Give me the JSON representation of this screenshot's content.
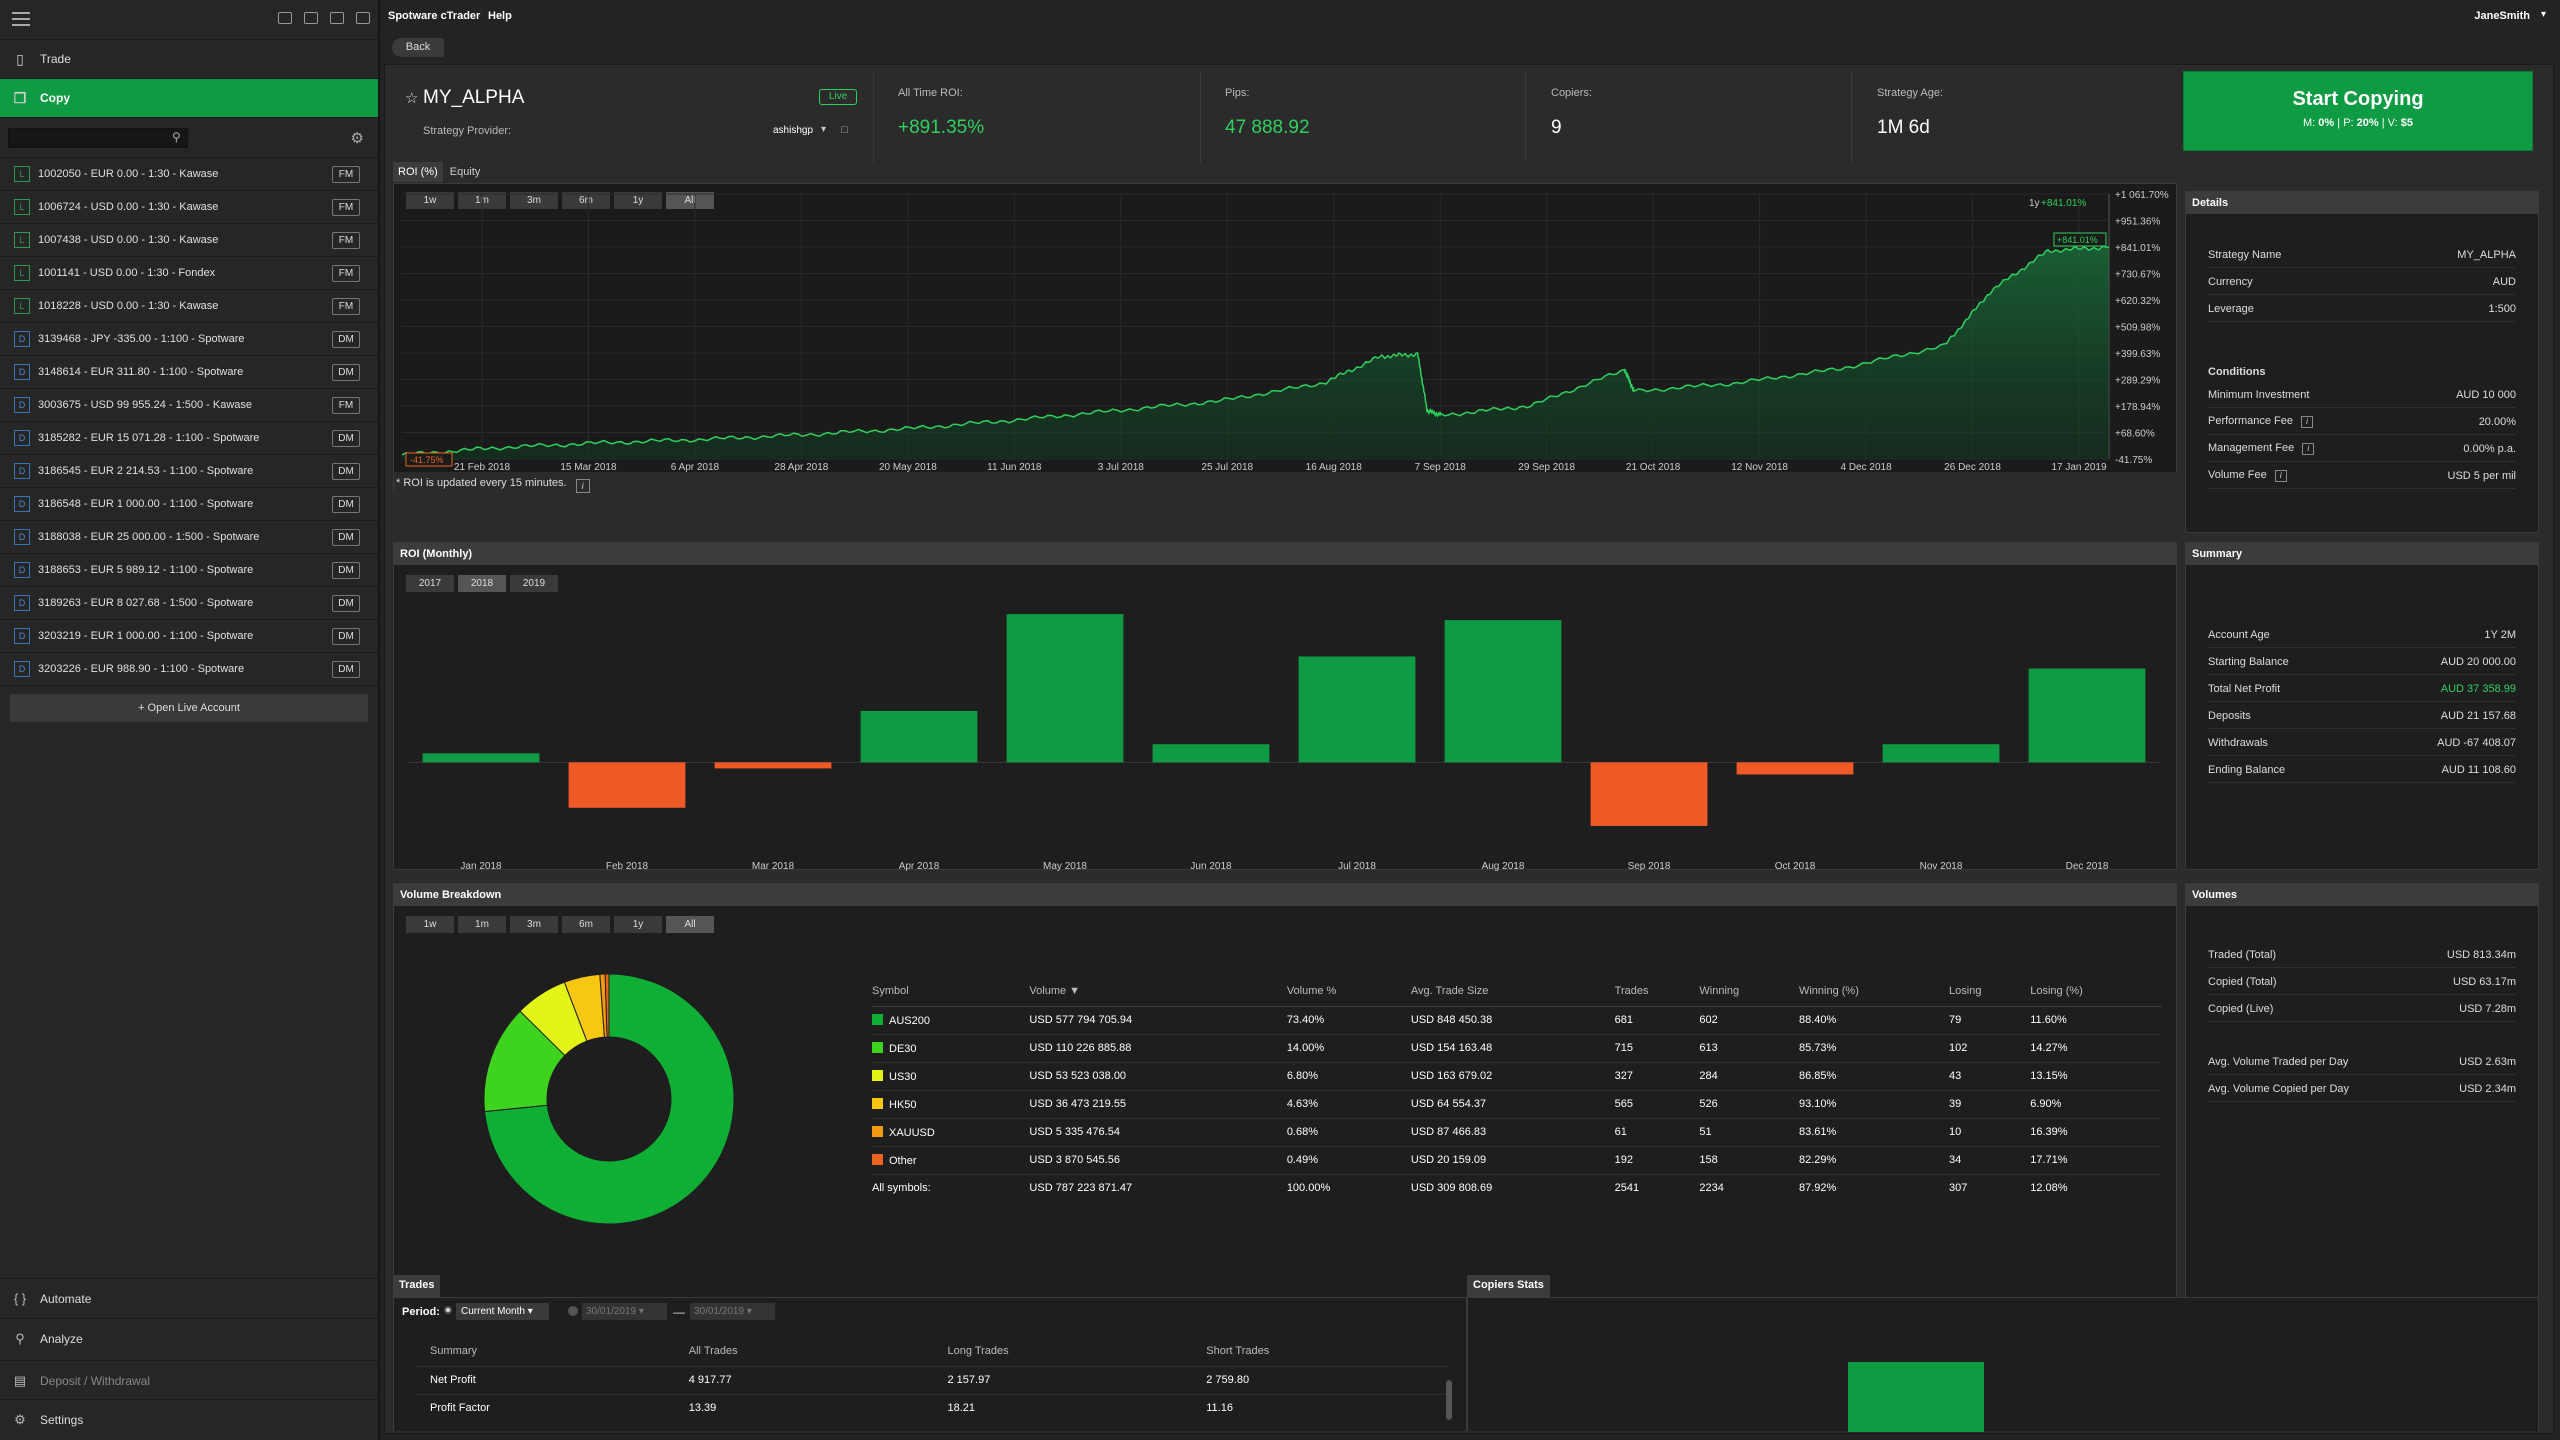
{
  "app": {
    "title": "Spotware cTrader",
    "help": "Help",
    "user": "JaneSmith",
    "back": "Back"
  },
  "sidebar": {
    "trade": "Trade",
    "copy": "Copy",
    "accounts": [
      {
        "type": "L",
        "label": "1002050 - EUR 0.00 - 1:30 - Kawase",
        "tag": "FM"
      },
      {
        "type": "L",
        "label": "1006724 - USD 0.00 - 1:30 - Kawase",
        "tag": "FM"
      },
      {
        "type": "L",
        "label": "1007438 - USD 0.00 - 1:30 - Kawase",
        "tag": "FM"
      },
      {
        "type": "L",
        "label": "1001141 - USD 0.00 - 1:30 - Fondex",
        "tag": "FM"
      },
      {
        "type": "L",
        "label": "1018228 - USD 0.00 - 1:30 - Kawase",
        "tag": "FM"
      },
      {
        "type": "D",
        "label": "3139468 - JPY -335.00 - 1:100 - Spotware",
        "tag": "DM"
      },
      {
        "type": "D",
        "label": "3148614 - EUR 311.80 - 1:100 - Spotware",
        "tag": "DM"
      },
      {
        "type": "D",
        "label": "3003675 - USD 99 955.24 - 1:500 - Kawase",
        "tag": "FM"
      },
      {
        "type": "D",
        "label": "3185282 - EUR 15 071.28 - 1:100 - Spotware",
        "tag": "DM"
      },
      {
        "type": "D",
        "label": "3186545 - EUR 2 214.53 - 1:100 - Spotware",
        "tag": "DM"
      },
      {
        "type": "D",
        "label": "3186548 - EUR 1 000.00 - 1:100 - Spotware",
        "tag": "DM"
      },
      {
        "type": "D",
        "label": "3188038 - EUR 25 000.00 - 1:500 - Spotware",
        "tag": "DM"
      },
      {
        "type": "D",
        "label": "3188653 - EUR 5 989.12 - 1:100 - Spotware",
        "tag": "DM"
      },
      {
        "type": "D",
        "label": "3189263 - EUR 8 027.68 - 1:500 - Spotware",
        "tag": "DM"
      },
      {
        "type": "D",
        "label": "3203219 - EUR 1 000.00 - 1:100 - Spotware",
        "tag": "DM"
      },
      {
        "type": "D",
        "label": "3203226 - EUR 988.90 - 1:100 - Spotware",
        "tag": "DM"
      }
    ],
    "open_live": "+ Open Live Account",
    "automate": "Automate",
    "analyze": "Analyze",
    "deposit": "Deposit / Withdrawal",
    "settings": "Settings"
  },
  "strategy": {
    "name": "MY_ALPHA",
    "live_badge": "Live",
    "provider_label": "Strategy Provider:",
    "provider": "ashishgp",
    "roi_label": "All Time ROI:",
    "roi": "+891.35%",
    "pips_label": "Pips:",
    "pips": "47 888.92",
    "copiers_label": "Copiers:",
    "copiers": "9",
    "age_label": "Strategy Age:",
    "age": "1M 6d",
    "start_copying": "Start Copying",
    "fees": {
      "m_label": "M:",
      "m": "0%",
      "p_label": "P:",
      "p": "20%",
      "v_label": "V:",
      "v": "$5"
    }
  },
  "roi_chart": {
    "tabs": [
      "ROI (%)",
      "Equity"
    ],
    "ranges": [
      "1w",
      "1m",
      "3m",
      "6m",
      "1y",
      "All"
    ],
    "legend": "1y",
    "legend_value": "+841.01%",
    "last_label": "+841.01%",
    "min_label": "-41.75%",
    "note": "* ROI is updated every 15 minutes.",
    "y_ticks": [
      "+1 061.70%",
      "+951.36%",
      "+841.01%",
      "+730.67%",
      "+620.32%",
      "+509.98%",
      "+399.63%",
      "+289.29%",
      "+178.94%",
      "+68.60%",
      "-41.75%"
    ],
    "x_ticks": [
      "21 Feb 2018",
      "15 Mar 2018",
      "6 Apr 2018",
      "28 Apr 2018",
      "20 May 2018",
      "11 Jun 2018",
      "3 Jul 2018",
      "25 Jul 2018",
      "16 Aug 2018",
      "7 Sep 2018",
      "29 Sep 2018",
      "21 Oct 2018",
      "12 Nov 2018",
      "4 Dec 2018",
      "26 Dec 2018",
      "17 Jan 2019"
    ]
  },
  "details": {
    "title": "Details",
    "rows": [
      [
        "Strategy Name",
        "MY_ALPHA"
      ],
      [
        "Currency",
        "AUD"
      ],
      [
        "Leverage",
        "1:500"
      ]
    ],
    "conditions_title": "Conditions",
    "conditions": [
      [
        "Minimum Investment",
        "AUD 10 000"
      ],
      [
        "Performance Fee",
        "20.00%"
      ],
      [
        "Management Fee",
        "0.00% p.a."
      ],
      [
        "Volume Fee",
        "USD 5 per mil"
      ]
    ]
  },
  "monthly": {
    "title": "ROI (Monthly)",
    "years": [
      "2017",
      "2018",
      "2019"
    ]
  },
  "summary": {
    "title": "Summary",
    "rows": [
      [
        "Account Age",
        "1Y 2M"
      ],
      [
        "Starting Balance",
        "AUD 20 000.00"
      ],
      [
        "Total Net Profit",
        "AUD 37 358.99"
      ],
      [
        "Deposits",
        "AUD 21 157.68"
      ],
      [
        "Withdrawals",
        "AUD -67 408.07"
      ],
      [
        "Ending Balance",
        "AUD 11 108.60"
      ]
    ],
    "profit_color": "#2fd05e"
  },
  "volume": {
    "title": "Volume Breakdown",
    "ranges": [
      "1w",
      "1m",
      "3m",
      "6m",
      "1y",
      "All"
    ],
    "headers": [
      "Symbol",
      "Volume ▼",
      "Volume %",
      "Avg. Trade Size",
      "Trades",
      "Winning",
      "Winning (%)",
      "Losing",
      "Losing (%)"
    ],
    "rows": [
      {
        "color": "#0fae34",
        "cells": [
          "AUS200",
          "USD 577 794 705.94",
          "73.40%",
          "USD 848 450.38",
          "681",
          "602",
          "88.40%",
          "79",
          "11.60%"
        ]
      },
      {
        "color": "#3ed41e",
        "cells": [
          "DE30",
          "USD 110 226 885.88",
          "14.00%",
          "USD 154 163.48",
          "715",
          "613",
          "85.73%",
          "102",
          "14.27%"
        ]
      },
      {
        "color": "#e3f516",
        "cells": [
          "US30",
          "USD 53 523 038.00",
          "6.80%",
          "USD 163 679.02",
          "327",
          "284",
          "86.85%",
          "43",
          "13.15%"
        ]
      },
      {
        "color": "#f7c712",
        "cells": [
          "HK50",
          "USD 36 473 219.55",
          "4.63%",
          "USD 64 554.37",
          "565",
          "526",
          "93.10%",
          "39",
          "6.90%"
        ]
      },
      {
        "color": "#f39a10",
        "cells": [
          "XAUUSD",
          "USD 5 335 476.54",
          "0.68%",
          "USD 87 466.83",
          "61",
          "51",
          "83.61%",
          "10",
          "16.39%"
        ]
      },
      {
        "color": "#e8631c",
        "cells": [
          "Other",
          "USD 3 870 545.56",
          "0.49%",
          "USD 20 159.09",
          "192",
          "158",
          "82.29%",
          "34",
          "17.71%"
        ]
      }
    ],
    "total": [
      "All symbols:",
      "USD 787 223 871.47",
      "100.00%",
      "USD 309 808.69",
      "2541",
      "2234",
      "87.92%",
      "307",
      "12.08%"
    ]
  },
  "volumes": {
    "title": "Volumes",
    "rows": [
      [
        "Traded (Total)",
        "USD 813.34m"
      ],
      [
        "Copied (Total)",
        "USD 63.17m"
      ],
      [
        "Copied (Live)",
        "USD 7.28m"
      ]
    ],
    "rows2": [
      [
        "Avg. Volume Traded per Day",
        "USD 2.63m"
      ],
      [
        "Avg. Volume Copied per Day",
        "USD 2.34m"
      ]
    ]
  },
  "trades": {
    "title": "Trades",
    "period_label": "Period:",
    "period": "Current Month",
    "date_from": "30/01/2019",
    "date_to": "30/01/2019",
    "headers": [
      "Summary",
      "All Trades",
      "Long Trades",
      "Short Trades"
    ],
    "rows": [
      [
        "Net Profit",
        "4 917.77",
        "2 157.97",
        "2 759.80"
      ],
      [
        "Profit Factor",
        "13.39",
        "18.21",
        "11.16"
      ]
    ]
  },
  "copiers_stats": {
    "title": "Copiers Stats"
  },
  "chart_data": [
    {
      "type": "pie",
      "title": "Volume Breakdown",
      "categories": [
        "AUS200",
        "DE30",
        "US30",
        "HK50",
        "XAUUSD",
        "Other"
      ],
      "values": [
        73.4,
        14.0,
        6.8,
        4.63,
        0.68,
        0.49
      ],
      "colors": [
        "#0fae34",
        "#3ed41e",
        "#e3f516",
        "#f7c712",
        "#f39a10",
        "#e8631c"
      ]
    },
    {
      "type": "bar",
      "title": "ROI (Monthly)",
      "categories": [
        "Jan 2018",
        "Feb 2018",
        "Mar 2018",
        "Apr 2018",
        "May 2018",
        "Jun 2018",
        "Jul 2018",
        "Aug 2018",
        "Sep 2018",
        "Oct 2018",
        "Nov 2018",
        "Dec 2018"
      ],
      "values": [
        1.5,
        -7.5,
        -1.0,
        8.5,
        24.5,
        3.0,
        17.5,
        23.5,
        -10.5,
        -2.0,
        3.0,
        15.5
      ],
      "ylim": [
        -12,
        26
      ]
    },
    {
      "type": "area",
      "title": "ROI (%)",
      "x": [
        "2018-02-01",
        "2018-02-21",
        "2018-03-15",
        "2018-04-06",
        "2018-04-28",
        "2018-05-20",
        "2018-06-11",
        "2018-07-03",
        "2018-07-25",
        "2018-08-16",
        "2018-08-28",
        "2018-09-05",
        "2018-09-07",
        "2018-09-10",
        "2018-09-29",
        "2018-10-19",
        "2018-10-21",
        "2018-11-12",
        "2018-12-04",
        "2018-12-26",
        "2019-01-05",
        "2019-01-17",
        "2019-01-30"
      ],
      "y": [
        -25,
        5,
        25,
        40,
        60,
        85,
        120,
        160,
        200,
        275,
        385,
        395,
        160,
        140,
        180,
        330,
        240,
        275,
        335,
        430,
        660,
        825,
        841
      ],
      "ylim": [
        -41.75,
        1061.7
      ]
    }
  ]
}
